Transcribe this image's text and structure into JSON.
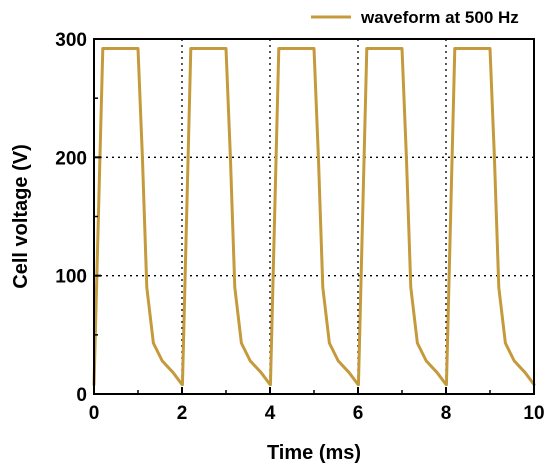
{
  "chart_data": {
    "type": "line",
    "xlabel": "Time (ms)",
    "ylabel": "Cell voltage (V)",
    "xlim": [
      0,
      10
    ],
    "ylim": [
      0,
      300
    ],
    "xticks": [
      "0",
      "2",
      "4",
      "6",
      "8",
      "10"
    ],
    "yticks": [
      "0",
      "100",
      "200",
      "300"
    ],
    "grid": "dotted, y at 100 and 200, x at 2/4/6/8",
    "legend_position": "top-right",
    "series": [
      {
        "name": "waveform at 500 Hz",
        "color": "#C49A3C",
        "x": [
          0,
          0.2,
          1.0,
          1.1,
          1.2,
          1.35,
          1.55,
          1.8,
          2.0,
          2.01,
          2.2,
          3.0,
          3.1,
          3.2,
          3.35,
          3.55,
          3.8,
          4.0,
          4.01,
          4.2,
          5.0,
          5.1,
          5.2,
          5.35,
          5.55,
          5.8,
          6.0,
          6.01,
          6.2,
          7.0,
          7.1,
          7.2,
          7.35,
          7.55,
          7.8,
          8.0,
          8.01,
          8.2,
          9.0,
          9.1,
          9.2,
          9.35,
          9.55,
          9.8,
          10.0
        ],
        "y": [
          8,
          292,
          292,
          200,
          90,
          43,
          28,
          18,
          8,
          8,
          292,
          292,
          200,
          90,
          43,
          28,
          18,
          8,
          8,
          292,
          292,
          200,
          90,
          43,
          28,
          18,
          8,
          8,
          292,
          292,
          200,
          90,
          43,
          28,
          18,
          8,
          8,
          292,
          292,
          200,
          90,
          43,
          28,
          18,
          8
        ]
      }
    ]
  }
}
